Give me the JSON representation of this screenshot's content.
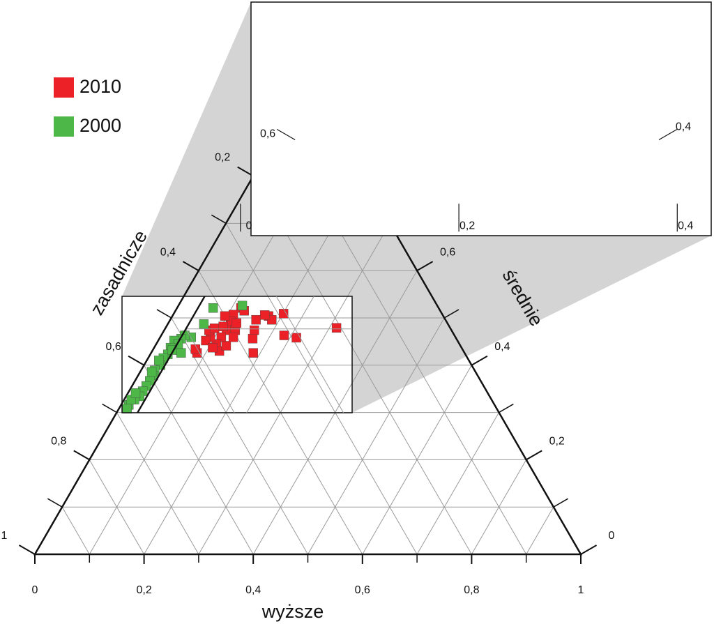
{
  "chart_data": {
    "type": "ternary",
    "axes": {
      "bottom": {
        "label": "wyższe",
        "ticks": [
          0,
          {
            "value": 0.2,
            "label": "0,2"
          },
          {
            "value": 0.4,
            "label": "0,4"
          },
          {
            "value": 0.6,
            "label": "0,6"
          },
          {
            "value": 0.8,
            "label": "0,8"
          },
          1
        ]
      },
      "left": {
        "label": "zasadnicze",
        "ticks": [
          {
            "value": 0.2,
            "label": "0,2"
          },
          {
            "value": 0.4,
            "label": "0,4"
          },
          {
            "value": 0.6,
            "label": "0,6"
          },
          {
            "value": 0.8,
            "label": "0,8"
          },
          1
        ]
      },
      "right": {
        "label": "średnie",
        "ticks": [
          0,
          {
            "value": 0.2,
            "label": "0,2"
          },
          {
            "value": 0.4,
            "label": "0,4"
          },
          {
            "value": 0.6,
            "label": "0,6"
          }
        ]
      }
    },
    "inset_ticks": {
      "bottom": [
        0,
        {
          "value": 0.2,
          "label": "0,2"
        },
        {
          "value": 0.4,
          "label": "0,4"
        }
      ],
      "left": [
        {
          "value": 0.6,
          "label": "0,6"
        }
      ],
      "right": [
        {
          "value": 0.4,
          "label": "0,4"
        }
      ]
    },
    "grid": true,
    "legend": "upper left",
    "series": [
      {
        "name": "2010",
        "color": "#ec2027",
        "values": [
          [
            0.313,
            0.479
          ],
          [
            0.25,
            0.458
          ],
          [
            0.225,
            0.463
          ],
          [
            0.187,
            0.426
          ],
          [
            0.165,
            0.474
          ],
          [
            0.157,
            0.496
          ],
          [
            0.171,
            0.456
          ],
          [
            0.176,
            0.504
          ],
          [
            0.186,
            0.496
          ],
          [
            0.201,
            0.509
          ],
          [
            0.168,
            0.506
          ],
          [
            0.117,
            0.521
          ],
          [
            0.11,
            0.507
          ],
          [
            0.112,
            0.493
          ],
          [
            0.114,
            0.474
          ],
          [
            0.112,
            0.459
          ],
          [
            0.11,
            0.445
          ],
          [
            0.092,
            0.459
          ],
          [
            0.082,
            0.474
          ],
          [
            0.09,
            0.478
          ],
          [
            0.104,
            0.482
          ],
          [
            0.13,
            0.474
          ],
          [
            0.125,
            0.489
          ],
          [
            0.087,
            0.452
          ],
          [
            0.123,
            0.43
          ],
          [
            0.084,
            0.426
          ],
          [
            0.077,
            0.434
          ],
          [
            0.13,
            0.441
          ],
          [
            0.107,
            0.437
          ],
          [
            0.134,
            0.459
          ],
          [
            0.126,
            0.515
          ],
          [
            0.096,
            0.504
          ]
        ]
      },
      {
        "name": "2000",
        "color": "#4db848",
        "values": [
          [
            0.066,
            0.521
          ],
          [
            0.117,
            0.526
          ],
          [
            0.066,
            0.487
          ],
          [
            0.057,
            0.459
          ],
          [
            0.043,
            0.463
          ],
          [
            0.04,
            0.456
          ],
          [
            0.029,
            0.452
          ],
          [
            0.04,
            0.445
          ],
          [
            0.03,
            0.437
          ],
          [
            0.055,
            0.426
          ],
          [
            0.032,
            0.423
          ],
          [
            0.028,
            0.415
          ],
          [
            0.03,
            0.4
          ],
          [
            0.025,
            0.389
          ],
          [
            0.028,
            0.378
          ],
          [
            0.027,
            0.367
          ],
          [
            0.026,
            0.356
          ],
          [
            0.025,
            0.345
          ],
          [
            0.025,
            0.334
          ],
          [
            0.019,
            0.327
          ],
          [
            0.014,
            0.316
          ],
          [
            0.015,
            0.308
          ],
          [
            0.013,
            0.327
          ],
          [
            0.014,
            0.341
          ],
          [
            0.021,
            0.386
          ],
          [
            0.022,
            0.41
          ],
          [
            0.036,
            0.432
          ]
        ]
      }
    ]
  }
}
